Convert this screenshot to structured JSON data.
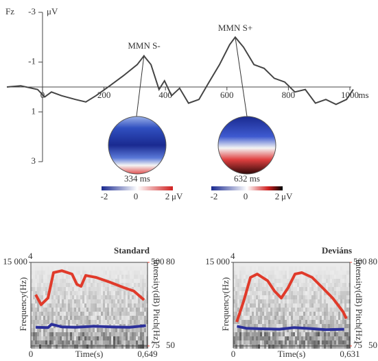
{
  "chart_data": [
    {
      "type": "line",
      "channel_label": "Fz",
      "y_unit": "μV",
      "x_unit": "ms",
      "color": "#444444",
      "x": [
        -116,
        -71,
        -16,
        7,
        29,
        62,
        107,
        141,
        174,
        219,
        263,
        308,
        330,
        353,
        379,
        397,
        420,
        446,
        475,
        509,
        542,
        576,
        609,
        627,
        654,
        688,
        721,
        754,
        788,
        821,
        855,
        888,
        922,
        955,
        989,
        1011
      ],
      "values": [
        0,
        -0.05,
        0.1,
        0.4,
        0.2,
        0.35,
        0.5,
        0.6,
        0.35,
        -0.05,
        -0.45,
        -0.9,
        -1.25,
        -0.9,
        0.1,
        -0.25,
        0.35,
        0.05,
        0.65,
        0.5,
        -0.2,
        -0.9,
        -1.7,
        -2.0,
        -1.6,
        -0.9,
        -0.75,
        -0.35,
        -0.2,
        0.2,
        0.1,
        0.65,
        0.5,
        0.7,
        0.5,
        0.1
      ],
      "xlim": [
        -116,
        1015
      ],
      "xticks": [
        0,
        200,
        400,
        600,
        800,
        1000
      ],
      "ylim": [
        -3,
        3
      ],
      "y_inverted": true,
      "yticks": [
        -3,
        -1,
        1,
        3
      ],
      "annotations": [
        {
          "text": "MMN S-"
        },
        {
          "text": "MMN S+"
        }
      ],
      "topomaps": [
        {
          "label": "334 ms"
        },
        {
          "label": "632 ms"
        }
      ],
      "colorbar": {
        "ticks": [
          -2,
          0,
          2
        ],
        "unit": "μV"
      }
    },
    {
      "type": "spectrogram",
      "title": "Standard",
      "corner_label": "4",
      "x_label": "Time(s)",
      "y_label": "Frequency(Hz)",
      "y2_label": "Pitch(Hz)",
      "y3_label": "Intensity(dB)",
      "xlim": [
        0,
        0.649
      ],
      "xticks": [
        0,
        {
          "value": 0.649,
          "label": "0,649"
        }
      ],
      "ylim": [
        0,
        15000
      ],
      "yticks": [
        {
          "value": 15000,
          "label": "15 000"
        }
      ],
      "y2lim": [
        75,
        500
      ],
      "y2ticks": [
        75,
        500
      ],
      "y3lim": [
        50,
        80
      ],
      "y3ticks": [
        50,
        80
      ],
      "series": [
        {
          "axis": "y2",
          "color": "#2b2f9a",
          "x": [
            0.027,
            0.095,
            0.115,
            0.172,
            0.25,
            0.35,
            0.45,
            0.55,
            0.64
          ],
          "values": [
            170,
            168,
            185,
            172,
            170,
            175,
            172,
            170,
            178
          ]
        },
        {
          "axis": "y3",
          "color": "#e03a2a",
          "x": [
            0.027,
            0.057,
            0.095,
            0.126,
            0.172,
            0.229,
            0.256,
            0.279,
            0.305,
            0.363,
            0.439,
            0.515,
            0.573,
            0.63
          ],
          "values": [
            68.4,
            64.8,
            67.2,
            76.3,
            77,
            75.8,
            72.1,
            71.4,
            75.3,
            74.6,
            72.9,
            71,
            69.7,
            66.5
          ]
        }
      ]
    },
    {
      "type": "spectrogram",
      "title": "Deviáns",
      "corner_label": "4",
      "x_label": "Time(s)",
      "y_label": "Frequency(Hz)",
      "y2_label": "Pitch(Hz)",
      "y3_label": "Intensity(dB)",
      "xlim": [
        0,
        0.631
      ],
      "xticks": [
        0,
        {
          "value": 0.631,
          "label": "0,631"
        }
      ],
      "ylim": [
        0,
        15000
      ],
      "yticks": [
        {
          "value": 15000,
          "label": "15 000"
        }
      ],
      "y2lim": [
        75,
        500
      ],
      "y2ticks": [
        75,
        500
      ],
      "y3lim": [
        50,
        80
      ],
      "y3ticks": [
        50,
        80
      ],
      "series": [
        {
          "axis": "y2",
          "color": "#2b2f9a",
          "x": [
            0.02,
            0.07,
            0.15,
            0.25,
            0.33,
            0.42,
            0.5,
            0.6
          ],
          "values": [
            175,
            165,
            162,
            160,
            168,
            163,
            158,
            160
          ]
        },
        {
          "axis": "y3",
          "color": "#e03a2a",
          "x": [
            0.019,
            0.056,
            0.093,
            0.13,
            0.186,
            0.223,
            0.26,
            0.297,
            0.334,
            0.371,
            0.427,
            0.483,
            0.538,
            0.594,
            0.612
          ],
          "values": [
            58.6,
            66,
            74.6,
            75.8,
            73.4,
            69.7,
            67.2,
            70.9,
            75.8,
            76.3,
            74.6,
            70.9,
            67.2,
            62.3,
            59.8
          ]
        }
      ]
    }
  ]
}
